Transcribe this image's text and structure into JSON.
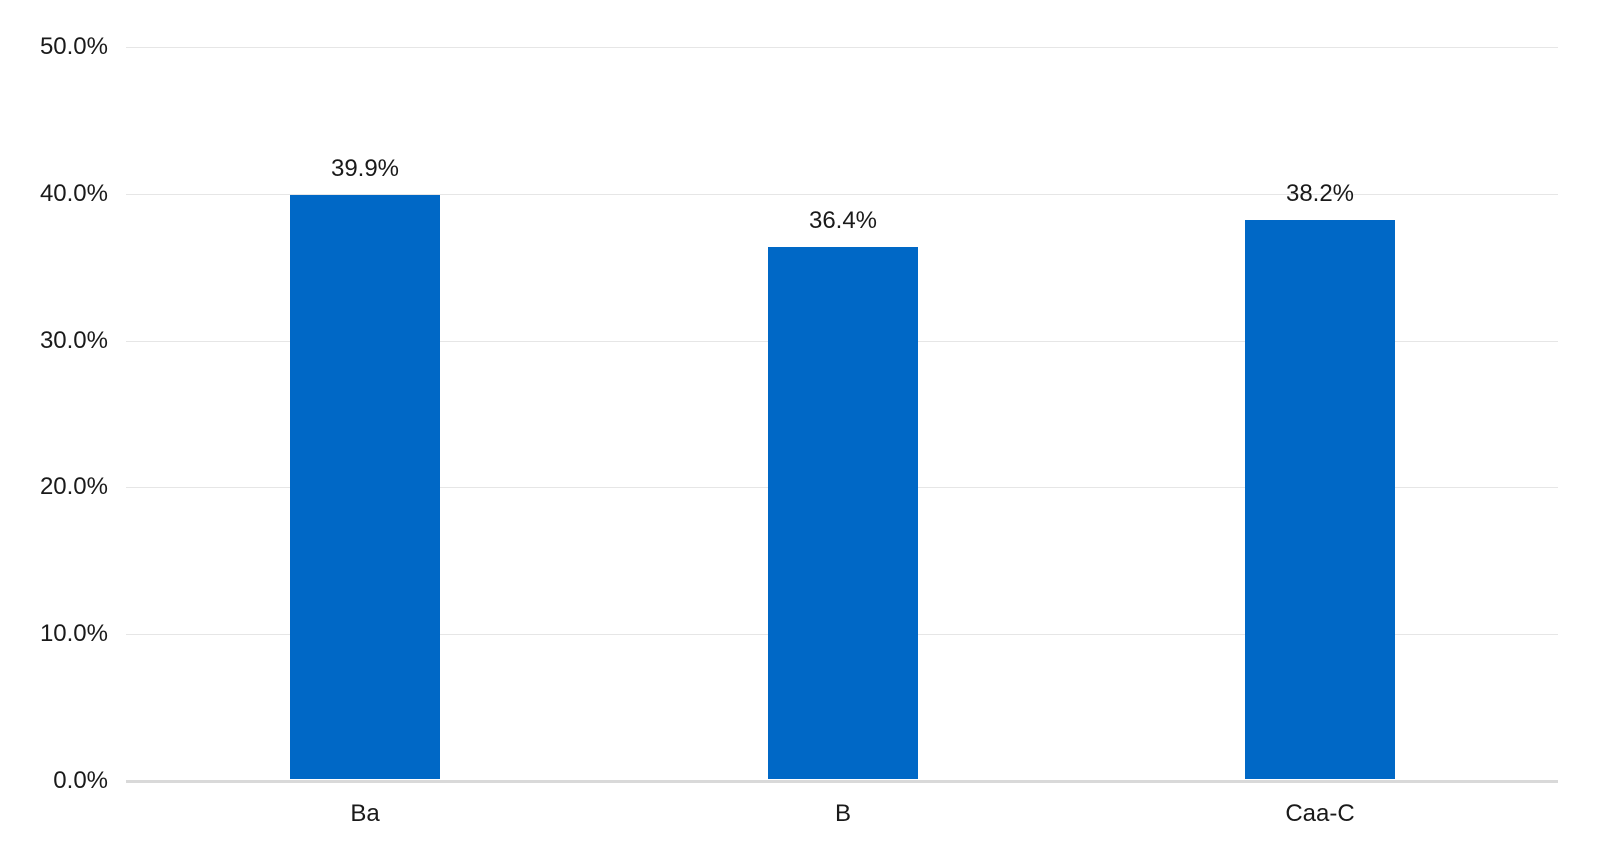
{
  "chart_data": {
    "type": "bar",
    "title": "",
    "xlabel": "",
    "ylabel": "",
    "categories": [
      "Ba",
      "B",
      "Caa-C"
    ],
    "values": [
      39.9,
      36.4,
      38.2
    ],
    "value_labels": [
      "39.9%",
      "36.4%",
      "38.2%"
    ],
    "y_ticks": [
      "0.0%",
      "10.0%",
      "20.0%",
      "30.0%",
      "40.0%",
      "50.0%"
    ],
    "ylim": [
      0,
      50
    ],
    "grid": true,
    "legend": null,
    "bar_color": "#0068c6"
  }
}
